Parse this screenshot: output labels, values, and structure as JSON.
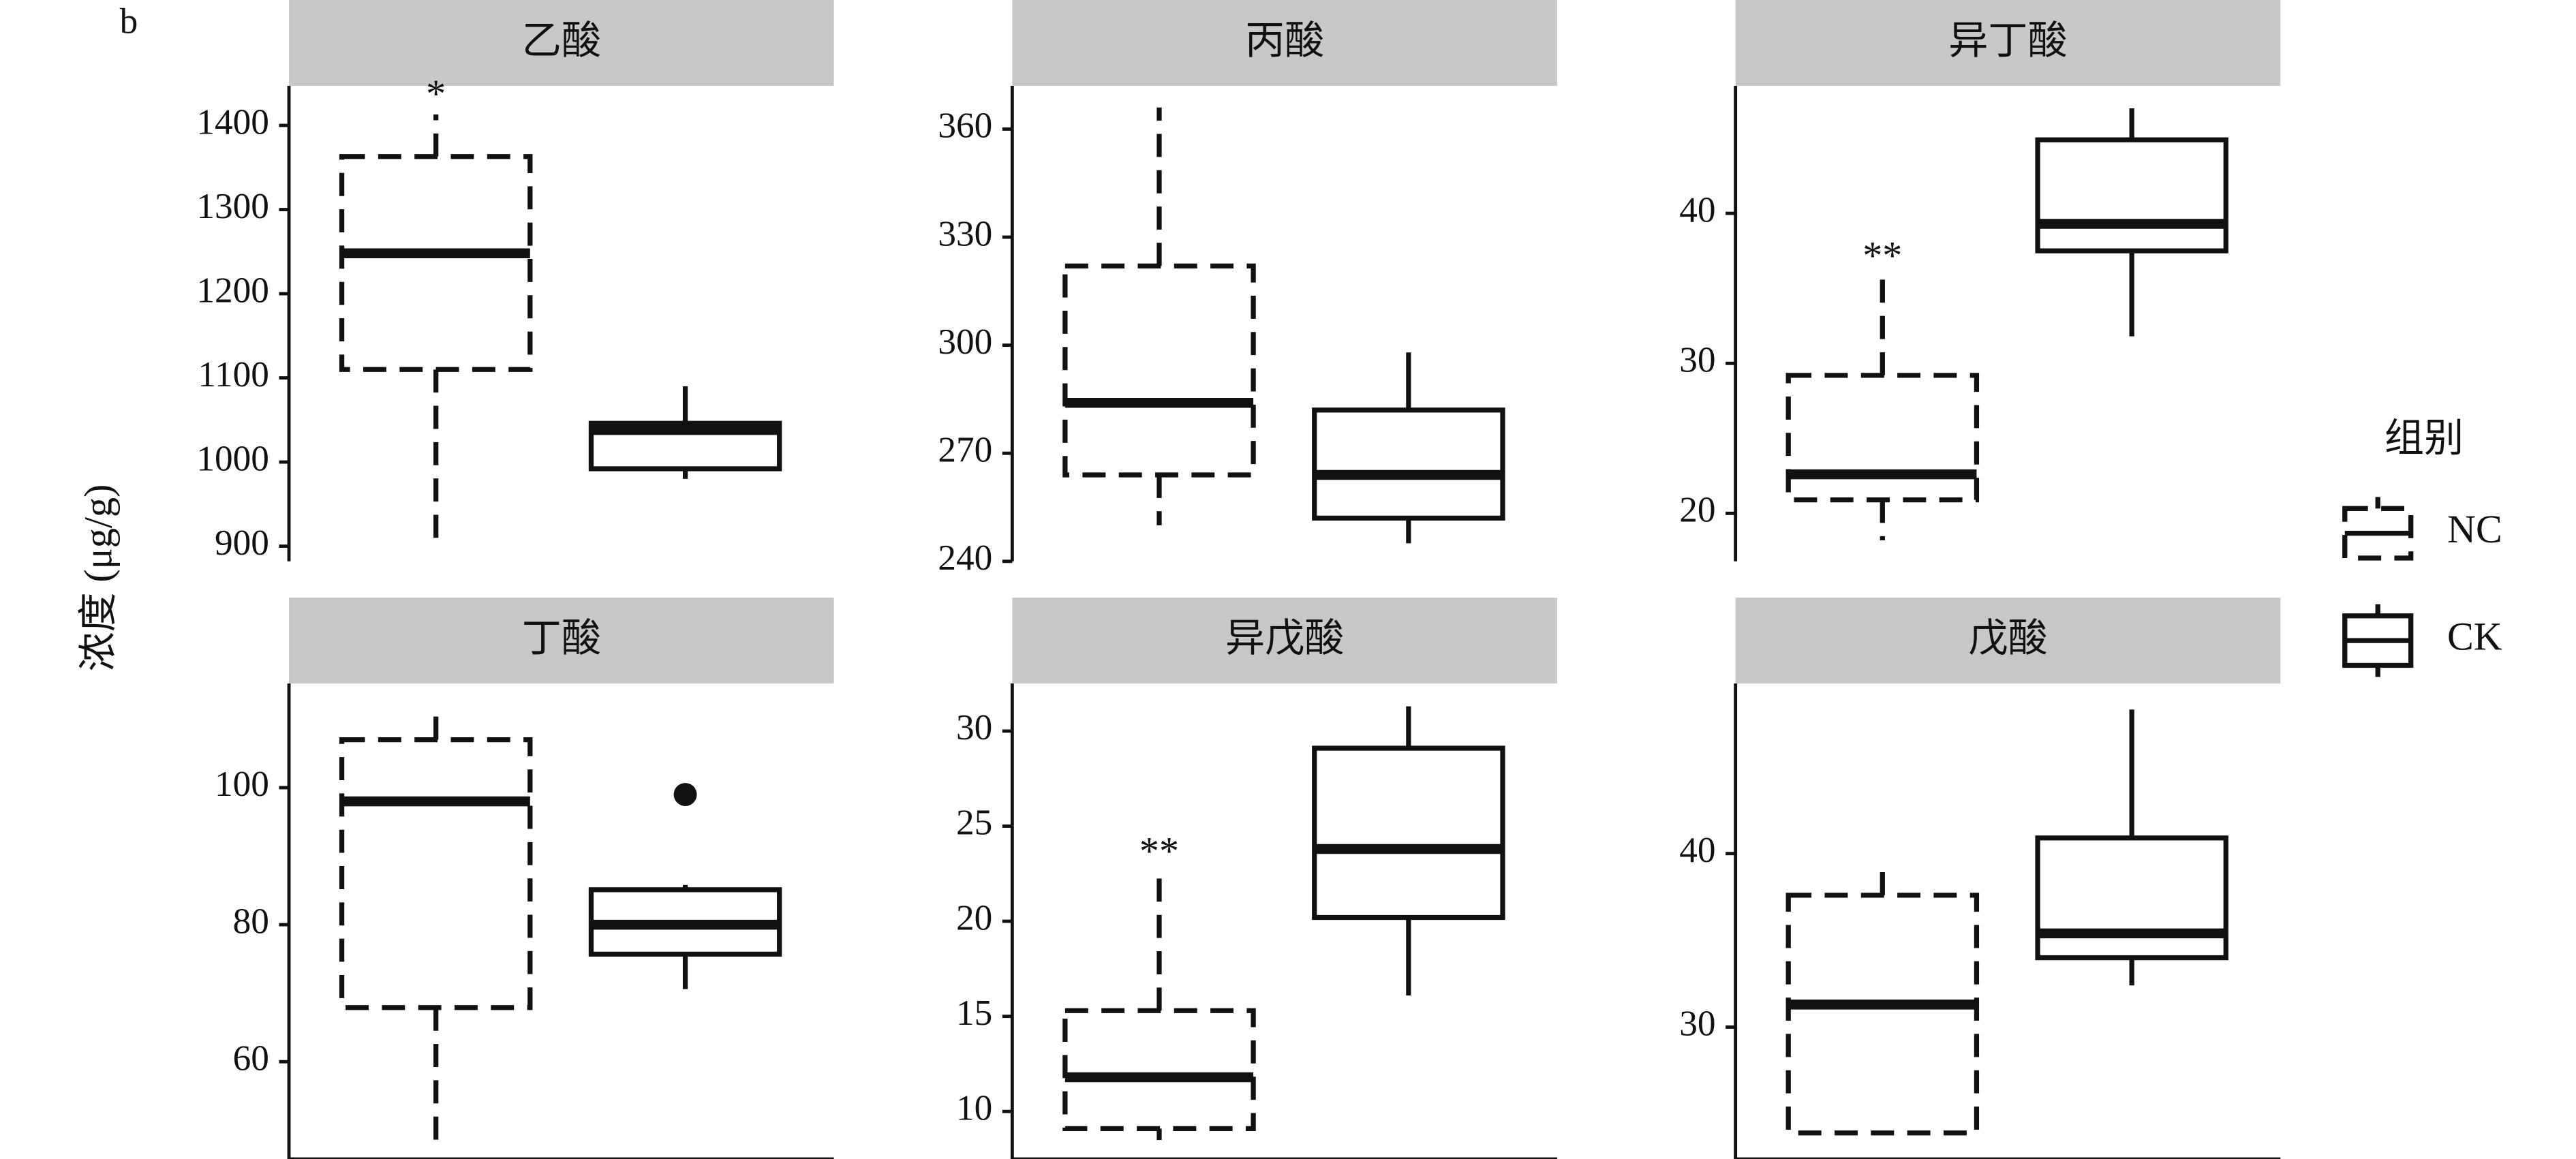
{
  "label": "b",
  "y_label": "浓度 (μg/g)",
  "legend_title": "组别",
  "chart_data": [
    {
      "type": "box",
      "title": "乙酸",
      "ylim": [
        882,
        1447
      ],
      "yticks": [
        900,
        1000,
        1100,
        1200,
        1300,
        1400
      ],
      "series": [
        {
          "name": "NC",
          "color": "#111111",
          "linestyle": "dashed",
          "min": 902,
          "q1": 1110,
          "median": 1248,
          "q3": 1363,
          "max": 1413,
          "annotation": "*"
        },
        {
          "name": "CK",
          "color": "#111111",
          "linestyle": "solid",
          "min": 980,
          "q1": 992,
          "median": 1038,
          "q3": 1046,
          "max": 1090
        }
      ]
    },
    {
      "type": "box",
      "title": "丙酸",
      "ylim": [
        240,
        372
      ],
      "yticks": [
        240,
        270,
        300,
        330,
        360
      ],
      "series": [
        {
          "name": "NC",
          "color": "#111111",
          "linestyle": "dashed",
          "min": 250,
          "q1": 264,
          "median": 284,
          "q3": 322,
          "max": 366
        },
        {
          "name": "CK",
          "color": "#111111",
          "linestyle": "solid",
          "min": 245,
          "q1": 252,
          "median": 264,
          "q3": 282,
          "max": 298
        }
      ]
    },
    {
      "type": "box",
      "title": "异丁酸",
      "ylim": [
        16.8,
        48.5
      ],
      "yticks": [
        20,
        30,
        40
      ],
      "series": [
        {
          "name": "NC",
          "color": "#111111",
          "linestyle": "dashed",
          "min": 18.2,
          "q1": 20.9,
          "median": 22.6,
          "q3": 29.2,
          "max": 35.8,
          "annotation": "**"
        },
        {
          "name": "CK",
          "color": "#111111",
          "linestyle": "solid",
          "min": 31.8,
          "q1": 37.5,
          "median": 39.3,
          "q3": 44.9,
          "max": 47
        }
      ]
    },
    {
      "type": "box",
      "title": "丁酸",
      "ylim": [
        45.8,
        115.2
      ],
      "yticks": [
        60,
        80,
        100
      ],
      "series": [
        {
          "name": "NC",
          "color": "#111111",
          "linestyle": "dashed",
          "min": 48.2,
          "q1": 67.9,
          "median": 98,
          "q3": 107,
          "max": 111.6
        },
        {
          "name": "CK",
          "color": "#111111",
          "linestyle": "solid",
          "min": 70.6,
          "q1": 75.7,
          "median": 80,
          "q3": 85.1,
          "max": 85.8,
          "outliers": [
            99
          ]
        }
      ]
    },
    {
      "type": "box",
      "title": "异戊酸",
      "ylim": [
        7.5,
        32.5
      ],
      "yticks": [
        10,
        15,
        20,
        25,
        30
      ],
      "series": [
        {
          "name": "NC",
          "color": "#111111",
          "linestyle": "dashed",
          "min": 8.5,
          "q1": 9.1,
          "median": 11.8,
          "q3": 15.3,
          "max": 22.6,
          "annotation": "**"
        },
        {
          "name": "CK",
          "color": "#111111",
          "linestyle": "solid",
          "min": 16.1,
          "q1": 20.2,
          "median": 23.8,
          "q3": 29.1,
          "max": 31.3
        }
      ]
    },
    {
      "type": "box",
      "title": "戊酸",
      "ylim": [
        22.4,
        49.8
      ],
      "yticks": [
        30,
        40
      ],
      "series": [
        {
          "name": "NC",
          "color": "#111111",
          "linestyle": "dashed",
          "min": 23.9,
          "q1": 23.9,
          "median": 31.3,
          "q3": 37.6,
          "max": 39.3
        },
        {
          "name": "CK",
          "color": "#111111",
          "linestyle": "solid",
          "min": 32.4,
          "q1": 34,
          "median": 35.4,
          "q3": 40.9,
          "max": 48.3
        }
      ]
    }
  ]
}
